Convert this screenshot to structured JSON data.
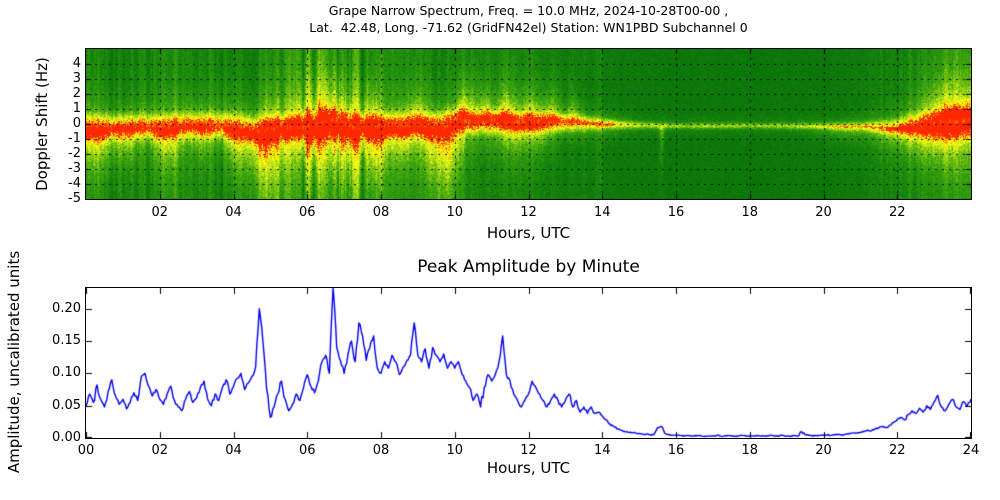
{
  "spectrogram_panel": {
    "title_line1": "Grape Narrow Spectrum, Freq. = 10.0 MHz, 2024-10-28T00-00 ,",
    "title_line2": "Lat.  42.48, Long. -71.62 (GridFN42el) Station: WN1PBD Subchannel 0",
    "ylabel": "Doppler Shift (Hz)",
    "xlabel": "Hours, UTC",
    "ytick_labels": [
      "4",
      "3",
      "2",
      "1",
      "0",
      "-1",
      "-2",
      "-3",
      "-4",
      "-5"
    ],
    "ytick_values": [
      4,
      3,
      2,
      1,
      0,
      -1,
      -2,
      -3,
      -4,
      -5
    ],
    "xtick_labels": [
      "02",
      "04",
      "06",
      "08",
      "10",
      "12",
      "14",
      "16",
      "18",
      "20",
      "22"
    ],
    "xtick_values": [
      2,
      4,
      6,
      8,
      10,
      12,
      14,
      16,
      18,
      20,
      22
    ]
  },
  "amplitude_panel": {
    "title": "Peak Amplitude by Minute",
    "ylabel": "Amplitude, uncalibrated units",
    "xlabel": "Hours, UTC",
    "ytick_labels": [
      "0.00",
      "0.05",
      "0.10",
      "0.15",
      "0.20"
    ],
    "ytick_values": [
      0,
      0.05,
      0.1,
      0.15,
      0.2
    ],
    "xtick_labels": [
      "00",
      "02",
      "04",
      "06",
      "08",
      "10",
      "12",
      "14",
      "16",
      "18",
      "20",
      "22",
      "24"
    ],
    "xtick_values": [
      0,
      2,
      4,
      6,
      8,
      10,
      12,
      14,
      16,
      18,
      20,
      22,
      24
    ]
  },
  "chart_data": [
    {
      "type": "heatmap",
      "title_line1": "Grape Narrow Spectrum, Freq. = 10.0 MHz, 2024-10-28T00-00 ,",
      "title_line2": "Lat.  42.48, Long. -71.62 (GridFN42el) Station: WN1PBD Subchannel 0",
      "xlabel": "Hours, UTC",
      "ylabel": "Doppler Shift (Hz)",
      "xlim": [
        0,
        24
      ],
      "ylim": [
        -5,
        5
      ],
      "grid": "dotted-black",
      "legend": "none",
      "colormap": [
        [
          0,
          0,
          85,
          0
        ],
        [
          0.3,
          15,
          125,
          12
        ],
        [
          0.5,
          60,
          165,
          15
        ],
        [
          0.65,
          150,
          210,
          20
        ],
        [
          0.78,
          235,
          245,
          30
        ],
        [
          0.88,
          255,
          255,
          0
        ],
        [
          0.95,
          255,
          170,
          0
        ],
        [
          1,
          255,
          40,
          0
        ]
      ],
      "bg_keyframes": [
        [
          0,
          0.28
        ],
        [
          8,
          0.28
        ],
        [
          12,
          0.25
        ],
        [
          14,
          0.21
        ],
        [
          16,
          0.19
        ],
        [
          20,
          0.19
        ],
        [
          21.5,
          0.24
        ],
        [
          23,
          0.3
        ],
        [
          24,
          0.32
        ]
      ],
      "band_keyframes": [
        [
          0,
          -0.2,
          0.55,
          0.9
        ],
        [
          1,
          -0.1,
          0.5,
          0.85
        ],
        [
          2,
          -0.15,
          0.5,
          0.9
        ],
        [
          3,
          0.0,
          0.5,
          0.85
        ],
        [
          4,
          -0.1,
          0.55,
          0.9
        ],
        [
          4.7,
          -0.45,
          0.6,
          0.95
        ],
        [
          5.3,
          -0.2,
          0.5,
          0.9
        ],
        [
          6,
          -0.1,
          0.55,
          0.95
        ],
        [
          6.7,
          0.1,
          0.6,
          1.0
        ],
        [
          7.3,
          -0.15,
          0.55,
          0.95
        ],
        [
          8,
          -0.1,
          0.5,
          0.9
        ],
        [
          8.7,
          0,
          0.5,
          0.9
        ],
        [
          9.3,
          -0.15,
          0.55,
          0.95
        ],
        [
          10.1,
          0.3,
          0.5,
          0.95
        ],
        [
          10.6,
          0.15,
          0.45,
          0.9
        ],
        [
          11.2,
          0.25,
          0.45,
          0.95
        ],
        [
          11.8,
          0.1,
          0.4,
          0.9
        ],
        [
          12.4,
          0.15,
          0.4,
          0.9
        ],
        [
          13,
          0.1,
          0.35,
          0.85
        ],
        [
          13.6,
          0.05,
          0.3,
          0.8
        ],
        [
          14.3,
          0,
          0.22,
          0.7
        ],
        [
          15,
          -0.05,
          0.16,
          0.55
        ],
        [
          16,
          -0.1,
          0.13,
          0.5
        ],
        [
          17,
          -0.1,
          0.13,
          0.5
        ],
        [
          18,
          -0.08,
          0.13,
          0.5
        ],
        [
          19,
          -0.1,
          0.14,
          0.5
        ],
        [
          20,
          -0.1,
          0.16,
          0.55
        ],
        [
          21,
          -0.12,
          0.2,
          0.6
        ],
        [
          21.8,
          -0.15,
          0.3,
          0.7
        ],
        [
          22.4,
          -0.1,
          0.45,
          0.85
        ],
        [
          23,
          0,
          0.6,
          0.95
        ],
        [
          23.5,
          0.15,
          0.7,
          1.0
        ],
        [
          24,
          0.3,
          0.75,
          1.0
        ]
      ],
      "plumes": [
        [
          0.3,
          0.5,
          2.2,
          0.5,
          -1
        ],
        [
          1.1,
          0.3,
          1.8,
          0.4,
          -1
        ],
        [
          2.2,
          0.4,
          2.2,
          0.45,
          -1
        ],
        [
          3.1,
          0.3,
          1.5,
          0.35,
          -1
        ],
        [
          4.0,
          0.25,
          1.8,
          0.4,
          -1
        ],
        [
          4.9,
          0.7,
          3.8,
          0.6,
          -1
        ],
        [
          6.1,
          0.3,
          2.5,
          0.5,
          -1
        ],
        [
          6.9,
          0.8,
          4.2,
          0.65,
          -1
        ],
        [
          7.9,
          0.35,
          2.5,
          0.5,
          -1
        ],
        [
          8.6,
          0.3,
          2.0,
          0.45,
          -1
        ],
        [
          9.7,
          0.55,
          4.0,
          0.7,
          -1
        ],
        [
          11.6,
          0.5,
          2.0,
          0.4,
          -1
        ],
        [
          12.3,
          0.35,
          1.5,
          0.3,
          -1
        ],
        [
          15.6,
          0.07,
          1.8,
          0.3,
          -1
        ],
        [
          20.5,
          0.8,
          0.8,
          0.2,
          -1
        ],
        [
          22.0,
          0.7,
          1.2,
          0.3,
          -1
        ],
        [
          23.2,
          0.8,
          1.8,
          0.45,
          -1
        ],
        [
          5.0,
          0.3,
          1.5,
          0.25,
          1
        ],
        [
          6.5,
          0.9,
          4.5,
          0.45,
          1
        ],
        [
          7.7,
          0.3,
          2.0,
          0.3,
          1
        ],
        [
          9.0,
          0.3,
          2.0,
          0.25,
          1
        ],
        [
          10.3,
          0.25,
          2.2,
          0.45,
          1
        ],
        [
          10.8,
          0.2,
          1.8,
          0.35,
          1
        ],
        [
          11.4,
          0.25,
          2.2,
          0.45,
          1
        ],
        [
          12.0,
          0.3,
          2.0,
          0.4,
          1
        ],
        [
          12.6,
          0.25,
          1.8,
          0.35,
          1
        ],
        [
          13.2,
          0.2,
          1.5,
          0.3,
          1
        ],
        [
          23.3,
          0.7,
          2.5,
          0.35,
          1
        ]
      ],
      "streaks": [
        [
          0,
          8,
          0.35
        ],
        [
          5.8,
          7.6,
          0.3
        ],
        [
          8,
          14,
          0.22
        ],
        [
          14,
          21.5,
          0.06
        ],
        [
          21.5,
          24,
          0.28
        ]
      ],
      "trace_segments": [
        [
          0,
          14.3
        ],
        [
          22.6,
          24
        ]
      ],
      "trace_keyframes": [
        [
          0,
          -0.2
        ],
        [
          0.5,
          -0.1
        ],
        [
          1,
          -0.15
        ],
        [
          1.5,
          0.0
        ],
        [
          2,
          -0.2
        ],
        [
          2.5,
          -0.1
        ],
        [
          3,
          0.05
        ],
        [
          3.5,
          -0.1
        ],
        [
          4,
          -0.05
        ],
        [
          4.4,
          -0.3
        ],
        [
          4.7,
          -0.55
        ],
        [
          5,
          -0.3
        ],
        [
          5.4,
          -0.15
        ],
        [
          5.8,
          -0.3
        ],
        [
          6.2,
          0.0
        ],
        [
          6.5,
          0.15
        ],
        [
          6.8,
          0.3
        ],
        [
          7.1,
          -0.1
        ],
        [
          7.4,
          -0.35
        ],
        [
          7.7,
          -0.1
        ],
        [
          8,
          -0.15
        ],
        [
          8.3,
          0.05
        ],
        [
          8.6,
          -0.1
        ],
        [
          9,
          0.0
        ],
        [
          9.4,
          -0.25
        ],
        [
          9.8,
          -0.1
        ],
        [
          10.1,
          0.35
        ],
        [
          10.4,
          0.2
        ],
        [
          10.7,
          0.1
        ],
        [
          11,
          0.3
        ],
        [
          11.3,
          0.15
        ],
        [
          11.6,
          0.1
        ],
        [
          12,
          0.2
        ],
        [
          12.4,
          0.1
        ],
        [
          12.8,
          0.15
        ],
        [
          13.2,
          0.1
        ],
        [
          13.6,
          0.05
        ],
        [
          14,
          0.0
        ],
        [
          14.3,
          -0.05
        ],
        [
          22.6,
          -0.1
        ],
        [
          23,
          0.0
        ],
        [
          23.4,
          0.2
        ],
        [
          23.7,
          0.1
        ],
        [
          24,
          0.3
        ]
      ]
    },
    {
      "type": "line",
      "title": "Peak Amplitude by Minute",
      "xlabel": "Hours, UTC",
      "ylabel": "Amplitude, uncalibrated units",
      "xlim": [
        0,
        24
      ],
      "ylim": [
        0,
        0.232
      ],
      "grid": "off",
      "legend": "none",
      "line_color": "#0000ee",
      "x_step_hours": 0.1,
      "values": [
        0.05,
        0.068,
        0.055,
        0.082,
        0.06,
        0.048,
        0.072,
        0.09,
        0.065,
        0.052,
        0.06,
        0.045,
        0.055,
        0.07,
        0.058,
        0.095,
        0.1,
        0.08,
        0.065,
        0.075,
        0.06,
        0.052,
        0.068,
        0.08,
        0.058,
        0.048,
        0.042,
        0.06,
        0.072,
        0.055,
        0.062,
        0.078,
        0.088,
        0.06,
        0.05,
        0.068,
        0.058,
        0.078,
        0.09,
        0.068,
        0.08,
        0.092,
        0.1,
        0.075,
        0.085,
        0.095,
        0.11,
        0.2,
        0.148,
        0.075,
        0.032,
        0.048,
        0.068,
        0.088,
        0.06,
        0.042,
        0.052,
        0.068,
        0.058,
        0.078,
        0.098,
        0.08,
        0.07,
        0.088,
        0.118,
        0.128,
        0.1,
        0.235,
        0.14,
        0.12,
        0.1,
        0.128,
        0.15,
        0.118,
        0.178,
        0.158,
        0.12,
        0.14,
        0.158,
        0.108,
        0.1,
        0.118,
        0.108,
        0.128,
        0.118,
        0.098,
        0.11,
        0.12,
        0.128,
        0.178,
        0.128,
        0.118,
        0.138,
        0.108,
        0.14,
        0.128,
        0.118,
        0.13,
        0.108,
        0.118,
        0.108,
        0.118,
        0.098,
        0.088,
        0.078,
        0.058,
        0.068,
        0.048,
        0.078,
        0.098,
        0.088,
        0.098,
        0.118,
        0.158,
        0.098,
        0.088,
        0.068,
        0.058,
        0.048,
        0.058,
        0.068,
        0.088,
        0.078,
        0.068,
        0.058,
        0.048,
        0.058,
        0.068,
        0.058,
        0.048,
        0.058,
        0.068,
        0.048,
        0.058,
        0.04,
        0.048,
        0.038,
        0.048,
        0.038,
        0.04,
        0.034,
        0.028,
        0.022,
        0.018,
        0.014,
        0.012,
        0.01,
        0.009,
        0.008,
        0.008,
        0.007,
        0.006,
        0.006,
        0.005,
        0.005,
        0.016,
        0.018,
        0.007,
        0.005,
        0.004,
        0.004,
        0.004,
        0.003,
        0.004,
        0.003,
        0.003,
        0.004,
        0.003,
        0.003,
        0.003,
        0.003,
        0.004,
        0.003,
        0.003,
        0.004,
        0.003,
        0.003,
        0.003,
        0.004,
        0.003,
        0.003,
        0.003,
        0.004,
        0.003,
        0.003,
        0.003,
        0.004,
        0.003,
        0.003,
        0.004,
        0.003,
        0.003,
        0.004,
        0.003,
        0.01,
        0.005,
        0.004,
        0.003,
        0.004,
        0.004,
        0.004,
        0.005,
        0.004,
        0.005,
        0.006,
        0.005,
        0.006,
        0.007,
        0.008,
        0.008,
        0.009,
        0.01,
        0.012,
        0.011,
        0.014,
        0.016,
        0.018,
        0.016,
        0.02,
        0.024,
        0.028,
        0.032,
        0.028,
        0.036,
        0.042,
        0.038,
        0.046,
        0.04,
        0.05,
        0.044,
        0.056,
        0.066,
        0.048,
        0.042,
        0.052,
        0.06,
        0.048,
        0.044,
        0.056,
        0.05,
        0.06
      ]
    }
  ]
}
